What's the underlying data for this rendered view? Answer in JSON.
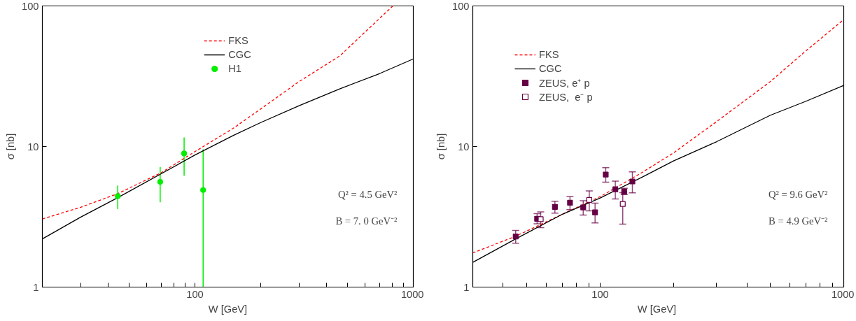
{
  "chart_data": [
    {
      "type": "scatter",
      "xlabel": "W [GeV]",
      "ylabel": "σ [nb]",
      "log": "xy",
      "xlim": [
        20,
        1000
      ],
      "ylim": [
        1,
        100
      ],
      "xticks": [
        {
          "value": 20,
          "label": null
        },
        {
          "value": 30,
          "label": null
        },
        {
          "value": 40,
          "label": null
        },
        {
          "value": 50,
          "label": null
        },
        {
          "value": 60,
          "label": null
        },
        {
          "value": 70,
          "label": null
        },
        {
          "value": 80,
          "label": null
        },
        {
          "value": 90,
          "label": null
        },
        100,
        {
          "value": 200,
          "label": null
        },
        {
          "value": 300,
          "label": null
        },
        {
          "value": 400,
          "label": null
        },
        {
          "value": 500,
          "label": null
        },
        {
          "value": 600,
          "label": null
        },
        {
          "value": 700,
          "label": null
        },
        {
          "value": 800,
          "label": null
        },
        {
          "value": 900,
          "label": null
        },
        1000
      ],
      "yticks": [
        1,
        10,
        100
      ],
      "grid": false,
      "legend": "top",
      "annotations": [
        "Q² = 4.5 GeV²",
        "B = 7. 0 GeV⁻²"
      ],
      "series": [
        {
          "name": "FKS",
          "type": "line",
          "line_style": "dashed",
          "color": "#ff0000",
          "x": [
            20,
            30,
            44,
            70,
            100,
            150,
            200,
            300,
            460,
            600,
            806
          ],
          "values": [
            3.05,
            3.7,
            4.6,
            6.5,
            9.2,
            13.5,
            18.5,
            29,
            44,
            65,
            100
          ]
        },
        {
          "name": "CGC",
          "type": "line",
          "line_style": "solid",
          "color": "#000000",
          "x": [
            20,
            30,
            44,
            70,
            100,
            150,
            200,
            300,
            460,
            700,
            1000
          ],
          "values": [
            2.2,
            3.15,
            4.3,
            6.4,
            8.7,
            12,
            14.8,
            19.5,
            25.7,
            33,
            42
          ]
        },
        {
          "name": "H1",
          "marker": "circle",
          "color": "#00ee00",
          "x": [
            44.3,
            69.3,
            89.2,
            109
          ],
          "values": [
            4.44,
            5.6,
            8.93,
            4.9
          ],
          "errors": [
            [
              3.59,
              5.28
            ],
            [
              4.01,
              7.16
            ],
            [
              6.19,
              11.6
            ],
            [
              1,
              9.55
            ]
          ]
        }
      ]
    },
    {
      "type": "scatter",
      "xlabel": "W  [GeV]",
      "ylabel": "σ [nb]",
      "log": "xy",
      "xlim": [
        30,
        1000
      ],
      "ylim": [
        1,
        100
      ],
      "xticks": [
        {
          "value": 40,
          "label": null
        },
        {
          "value": 50,
          "label": null
        },
        {
          "value": 60,
          "label": null
        },
        {
          "value": 70,
          "label": null
        },
        {
          "value": 80,
          "label": null
        },
        {
          "value": 90,
          "label": null
        },
        100,
        {
          "value": 200,
          "label": null
        },
        {
          "value": 300,
          "label": null
        },
        {
          "value": 400,
          "label": null
        },
        {
          "value": 500,
          "label": null
        },
        {
          "value": 600,
          "label": null
        },
        {
          "value": 700,
          "label": null
        },
        {
          "value": 800,
          "label": null
        },
        {
          "value": 900,
          "label": null
        },
        1000
      ],
      "yticks": [
        1,
        10,
        100
      ],
      "grid": false,
      "legend": "top left",
      "annotations": [
        "Q² = 9.6 GeV²",
        "B = 4.9 GeV⁻²"
      ],
      "series": [
        {
          "name": "FKS",
          "type": "line",
          "line_style": "dashed",
          "color": "#ff0000",
          "x": [
            30,
            45,
            70,
            100,
            150,
            200,
            300,
            500,
            700,
            1000
          ],
          "values": [
            1.75,
            2.3,
            3.3,
            4.4,
            6.6,
            9.0,
            15,
            29,
            48,
            80
          ]
        },
        {
          "name": "CGC",
          "type": "line",
          "line_style": "solid",
          "color": "#000000",
          "x": [
            30,
            45,
            70,
            100,
            150,
            200,
            300,
            500,
            700,
            1000
          ],
          "values": [
            1.5,
            2.2,
            3.3,
            4.3,
            6.1,
            7.9,
            10.8,
            16.7,
            21,
            27.2
          ]
        },
        {
          "name": "ZEUS, e⁺ p",
          "marker": "square",
          "color": "#660044",
          "x": [
            45,
            55.1,
            65.2,
            75.2,
            85.2,
            95.3,
            105.4,
            115.4,
            125.5,
            135.6
          ],
          "values": [
            2.29,
            3.06,
            3.72,
            3.98,
            3.69,
            3.4,
            6.32,
            4.96,
            4.78,
            5.64
          ],
          "errors": [
            [
              2.05,
              2.53
            ],
            [
              2.82,
              3.33
            ],
            [
              3.36,
              4.08
            ],
            [
              3.56,
              4.41
            ],
            [
              3.25,
              4.12
            ],
            [
              2.86,
              3.95
            ],
            [
              5.58,
              7.08
            ],
            [
              4.24,
              5.68
            ],
            [
              4.55,
              5.05
            ],
            [
              4.68,
              6.61
            ]
          ]
        },
        {
          "name": "ZEUS,  e⁻ p",
          "marker": "square",
          "color": "#660044",
          "x": [
            57,
            90.2,
            123.8
          ],
          "values": [
            3.04,
            4.17,
            3.9
          ],
          "errors": [
            [
              2.65,
              3.43
            ],
            [
              3.49,
              4.83
            ],
            [
              2.8,
              4.7
            ]
          ]
        }
      ]
    }
  ]
}
